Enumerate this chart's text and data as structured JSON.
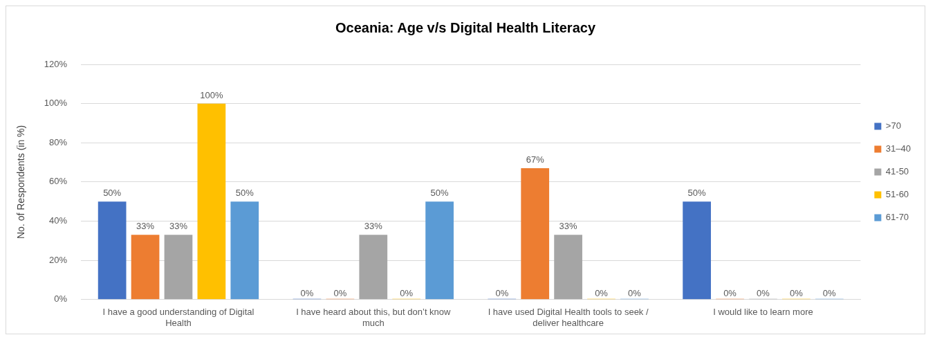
{
  "chart_data": {
    "type": "bar",
    "title": "Oceania: Age v/s Digital Health Literacy",
    "ylabel": "No. of Respondents (in %)",
    "categories": [
      "I have a good understanding of Digital Health",
      "I have heard about this, but don’t know much",
      "I have used Digital Health tools to seek / deliver healthcare",
      "I would like to learn more"
    ],
    "series": [
      {
        "name": ">70",
        "color": "#4472c4",
        "values": [
          50,
          0,
          0,
          50
        ],
        "value_labels": [
          "50%",
          "0%",
          "0%",
          "50%"
        ]
      },
      {
        "name": "31–40",
        "color": "#ed7d31",
        "values": [
          33,
          0,
          67,
          0
        ],
        "value_labels": [
          "33%",
          "0%",
          "67%",
          "0%"
        ]
      },
      {
        "name": "41-50",
        "color": "#a5a5a5",
        "values": [
          33,
          33,
          33,
          0
        ],
        "value_labels": [
          "33%",
          "33%",
          "33%",
          "0%"
        ]
      },
      {
        "name": "51-60",
        "color": "#ffc000",
        "values": [
          100,
          0,
          0,
          0
        ],
        "value_labels": [
          "100%",
          "0%",
          "0%",
          "0%"
        ]
      },
      {
        "name": "61-70",
        "color": "#5b9bd5",
        "values": [
          50,
          50,
          0,
          0
        ],
        "value_labels": [
          "50%",
          "50%",
          "0%",
          "0%"
        ]
      }
    ],
    "ylim": [
      0,
      120
    ],
    "yticks": [
      {
        "value": 0,
        "label": "0%"
      },
      {
        "value": 20,
        "label": "20%"
      },
      {
        "value": 40,
        "label": "40%"
      },
      {
        "value": 60,
        "label": "60%"
      },
      {
        "value": 80,
        "label": "80%"
      },
      {
        "value": 100,
        "label": "100%"
      },
      {
        "value": 120,
        "label": "120%"
      }
    ],
    "grid": "y",
    "legend": "right"
  }
}
